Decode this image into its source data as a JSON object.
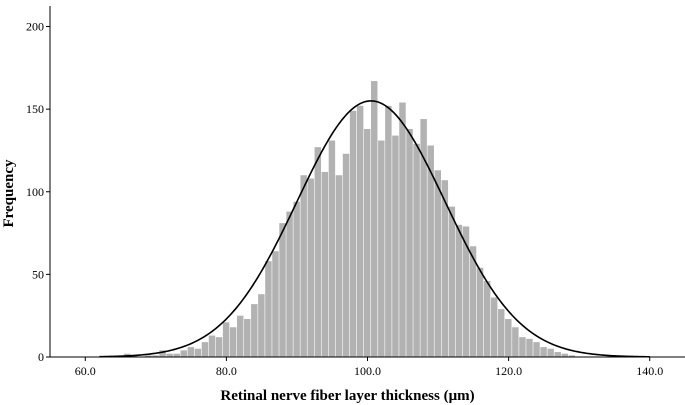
{
  "chart_data": {
    "type": "bar",
    "title": "",
    "xlabel": "Retinal nerve fiber layer thickness (μm)",
    "ylabel": "Frequency",
    "xlim": [
      55,
      145
    ],
    "ylim": [
      0,
      210
    ],
    "x_ticks": [
      60,
      80,
      100,
      120,
      140
    ],
    "x_tick_labels": [
      "60.0",
      "80.0",
      "100.0",
      "120.0",
      "140.0"
    ],
    "y_ticks": [
      0,
      50,
      100,
      150,
      200
    ],
    "y_tick_labels": [
      "0",
      "50",
      "100",
      "150",
      "200"
    ],
    "bar_color": "#b2b2b2",
    "curve_color": "#000000",
    "grid": false,
    "bin_width": 1.0,
    "bins": [
      {
        "x": 66,
        "value": 2
      },
      {
        "x": 67,
        "value": 1
      },
      {
        "x": 69,
        "value": 1
      },
      {
        "x": 70,
        "value": 1
      },
      {
        "x": 71,
        "value": 4
      },
      {
        "x": 72,
        "value": 2
      },
      {
        "x": 73,
        "value": 2
      },
      {
        "x": 74,
        "value": 4
      },
      {
        "x": 75,
        "value": 6
      },
      {
        "x": 76,
        "value": 5
      },
      {
        "x": 77,
        "value": 9
      },
      {
        "x": 78,
        "value": 13
      },
      {
        "x": 79,
        "value": 12
      },
      {
        "x": 80,
        "value": 21
      },
      {
        "x": 81,
        "value": 18
      },
      {
        "x": 82,
        "value": 25
      },
      {
        "x": 83,
        "value": 23
      },
      {
        "x": 84,
        "value": 32
      },
      {
        "x": 85,
        "value": 38
      },
      {
        "x": 86,
        "value": 58
      },
      {
        "x": 87,
        "value": 64
      },
      {
        "x": 88,
        "value": 81
      },
      {
        "x": 89,
        "value": 88
      },
      {
        "x": 90,
        "value": 94
      },
      {
        "x": 91,
        "value": 110
      },
      {
        "x": 92,
        "value": 108
      },
      {
        "x": 93,
        "value": 127
      },
      {
        "x": 94,
        "value": 112
      },
      {
        "x": 95,
        "value": 131
      },
      {
        "x": 96,
        "value": 110
      },
      {
        "x": 97,
        "value": 123
      },
      {
        "x": 98,
        "value": 149
      },
      {
        "x": 99,
        "value": 152
      },
      {
        "x": 100,
        "value": 138
      },
      {
        "x": 101,
        "value": 167
      },
      {
        "x": 102,
        "value": 131
      },
      {
        "x": 103,
        "value": 152
      },
      {
        "x": 104,
        "value": 134
      },
      {
        "x": 105,
        "value": 154
      },
      {
        "x": 106,
        "value": 138
      },
      {
        "x": 107,
        "value": 129
      },
      {
        "x": 108,
        "value": 144
      },
      {
        "x": 109,
        "value": 128
      },
      {
        "x": 110,
        "value": 113
      },
      {
        "x": 111,
        "value": 107
      },
      {
        "x": 112,
        "value": 91
      },
      {
        "x": 113,
        "value": 80
      },
      {
        "x": 114,
        "value": 79
      },
      {
        "x": 115,
        "value": 67
      },
      {
        "x": 116,
        "value": 54
      },
      {
        "x": 117,
        "value": 46
      },
      {
        "x": 118,
        "value": 36
      },
      {
        "x": 119,
        "value": 29
      },
      {
        "x": 120,
        "value": 23
      },
      {
        "x": 121,
        "value": 18
      },
      {
        "x": 122,
        "value": 12
      },
      {
        "x": 123,
        "value": 11
      },
      {
        "x": 124,
        "value": 9
      },
      {
        "x": 125,
        "value": 6
      },
      {
        "x": 126,
        "value": 5
      },
      {
        "x": 127,
        "value": 3
      },
      {
        "x": 128,
        "value": 2
      },
      {
        "x": 129,
        "value": 1
      }
    ],
    "normal_curve": {
      "mean": 100.5,
      "sd": 10.5,
      "peak": 155
    }
  }
}
